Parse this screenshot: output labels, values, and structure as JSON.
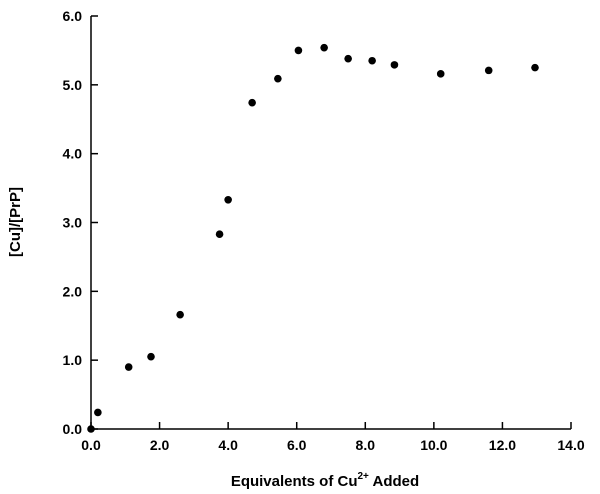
{
  "chart_data": {
    "type": "scatter",
    "title": "",
    "xlabel": {
      "pre": "Equivalents  of  Cu",
      "sup": "2+",
      "post": " Added"
    },
    "ylabel": "[Cu]/[PrP]",
    "xlim": [
      0,
      14
    ],
    "ylim": [
      0,
      6
    ],
    "xticks": [
      0,
      2,
      4,
      6,
      8,
      10,
      12,
      14
    ],
    "yticks": [
      0,
      1,
      2,
      3,
      4,
      5,
      6
    ],
    "xtick_labels": [
      "0.0",
      "2.0",
      "4.0",
      "6.0",
      "8.0",
      "10.0",
      "12.0",
      "14.0"
    ],
    "ytick_labels": [
      "0.0",
      "1.0",
      "2.0",
      "3.0",
      "4.0",
      "5.0",
      "6.0"
    ],
    "grid": false,
    "legend": false,
    "marker_color": "#000000",
    "series": [
      {
        "points": [
          [
            0.0,
            0.0
          ],
          [
            0.2,
            0.24
          ],
          [
            1.1,
            0.9
          ],
          [
            1.75,
            1.05
          ],
          [
            2.6,
            1.66
          ],
          [
            3.75,
            2.83
          ],
          [
            4.0,
            3.33
          ],
          [
            4.7,
            4.74
          ],
          [
            5.45,
            5.09
          ],
          [
            6.05,
            5.5
          ],
          [
            6.8,
            5.54
          ],
          [
            7.5,
            5.38
          ],
          [
            8.2,
            5.35
          ],
          [
            8.85,
            5.29
          ],
          [
            10.2,
            5.16
          ],
          [
            11.6,
            5.21
          ],
          [
            12.95,
            5.25
          ]
        ]
      }
    ]
  }
}
